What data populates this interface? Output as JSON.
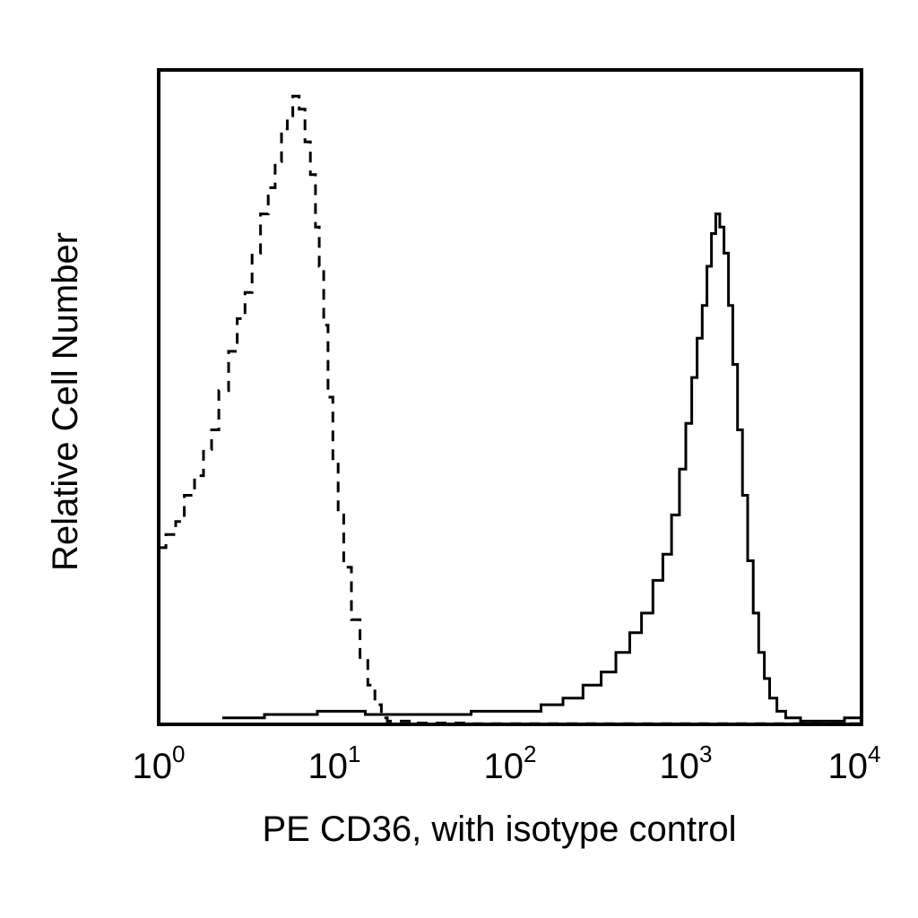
{
  "chart_data": {
    "type": "line",
    "title": "",
    "xlabel": "PE CD36, with isotype control",
    "ylabel": "Relative Cell Number",
    "x_scale": "log",
    "xlim": [
      1,
      10000
    ],
    "ylim": [
      0,
      100
    ],
    "grid": false,
    "legend": "none",
    "x_ticks": [
      {
        "base": "10",
        "exp": "0"
      },
      {
        "base": "10",
        "exp": "1"
      },
      {
        "base": "10",
        "exp": "2"
      },
      {
        "base": "10",
        "exp": "3"
      },
      {
        "base": "10",
        "exp": "4"
      }
    ],
    "series": [
      {
        "style": "dashed",
        "color": "#000000",
        "x": [
          1.0,
          1.1,
          1.25,
          1.4,
          1.6,
          1.8,
          2.0,
          2.2,
          2.5,
          2.8,
          3.1,
          3.4,
          3.8,
          4.2,
          4.6,
          5.0,
          5.4,
          5.8,
          6.3,
          6.8,
          7.3,
          7.8,
          8.2,
          8.7,
          9.2,
          9.8,
          10.5,
          11.3,
          12.5,
          14.0,
          15.5,
          17.0,
          18.5,
          20.0,
          30.0,
          60.0,
          100.0,
          300.0,
          1000.0,
          3000.0,
          10000.0
        ],
        "y": [
          27,
          29,
          31,
          35,
          38,
          42,
          45,
          51,
          57,
          62,
          66,
          72,
          78,
          82,
          86,
          91,
          93,
          96,
          94,
          89,
          84,
          76,
          70,
          61,
          50,
          40,
          32,
          24,
          16,
          10,
          6,
          3,
          1,
          0.5,
          0.2,
          0.1,
          0.1,
          0.1,
          0.1,
          0.1,
          0.1
        ]
      },
      {
        "style": "solid",
        "color": "#000000",
        "x": [
          2.3,
          4.0,
          8.0,
          15.0,
          30.0,
          60.0,
          100.0,
          150.0,
          200.0,
          260.0,
          330.0,
          400.0,
          480.0,
          560.0,
          650.0,
          740.0,
          830.0,
          920.0,
          1000.0,
          1080.0,
          1160.0,
          1240.0,
          1320.0,
          1400.0,
          1480.0,
          1560.0,
          1650.0,
          1750.0,
          1850.0,
          1970.0,
          2100.0,
          2250.0,
          2420.0,
          2600.0,
          2800.0,
          3000.0,
          3300.0,
          3700.0,
          4500.0,
          6000.0,
          8000.0,
          10000.0
        ],
        "y": [
          1,
          1.5,
          2,
          1.5,
          1.5,
          2,
          2,
          3,
          4,
          6,
          8,
          11,
          14,
          17,
          22,
          26,
          32,
          39,
          46,
          53,
          59,
          64,
          70,
          75,
          78,
          76,
          72,
          64,
          55,
          45,
          35,
          25,
          17,
          11,
          7,
          4,
          2,
          1,
          0.5,
          0.5,
          1,
          1
        ]
      }
    ]
  }
}
